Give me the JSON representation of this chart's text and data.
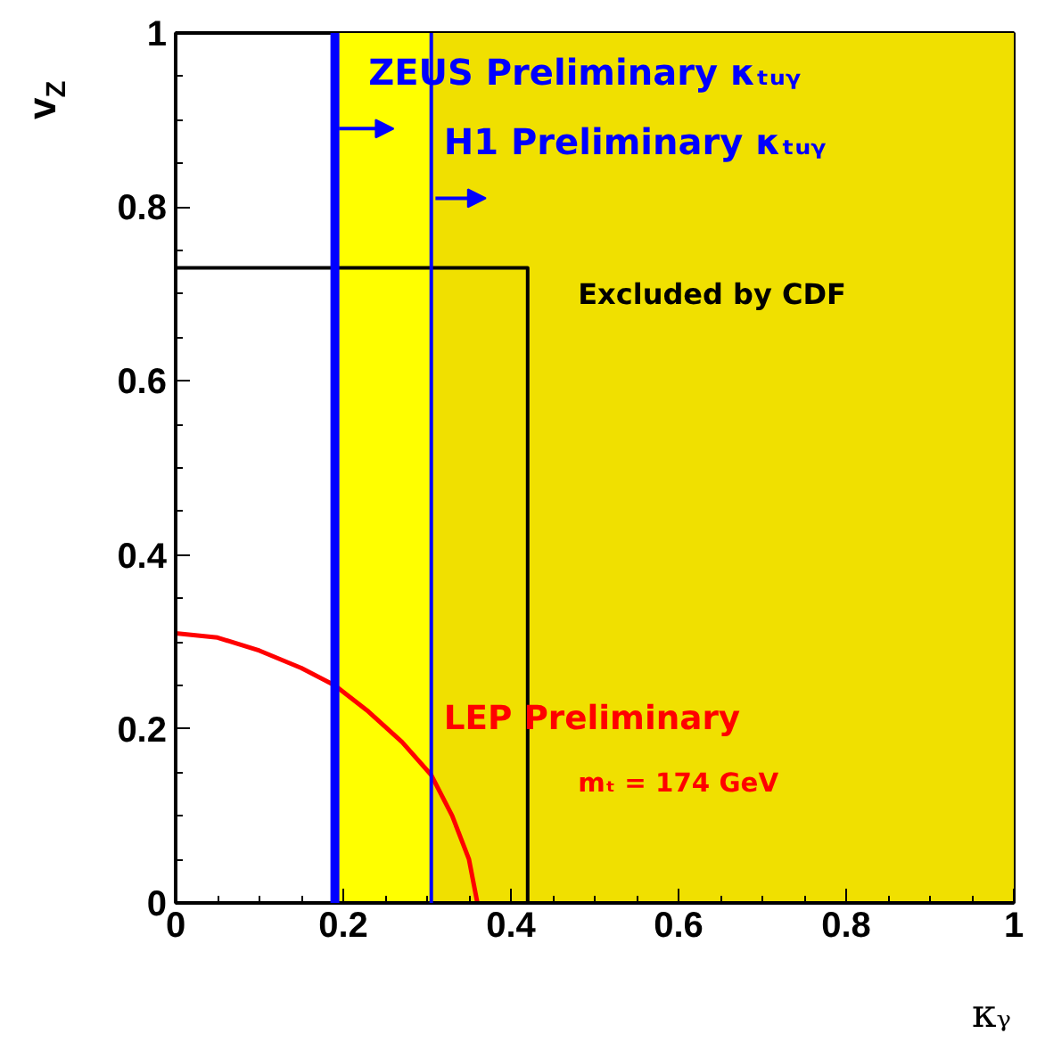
{
  "chart_data": {
    "type": "line",
    "xlabel": "κᵧ",
    "ylabel": "v$_{Z}$",
    "xlim": [
      0,
      1
    ],
    "ylim": [
      0,
      1
    ],
    "xticks": [
      0,
      0.2,
      0.4,
      0.6,
      0.8,
      1
    ],
    "yticks": [
      0,
      0.2,
      0.4,
      0.6,
      0.8,
      1
    ],
    "grid": false,
    "marker": "none",
    "line_style": "solid",
    "series": [
      {
        "name": "Excluded by CDF",
        "color": "#000000",
        "x": [
          0,
          0.42,
          0.42
        ],
        "values": [
          0.73,
          0.73,
          0
        ]
      },
      {
        "name": "LEP  Preliminary",
        "color": "#ff0000",
        "x": [
          0,
          0.05,
          0.1,
          0.15,
          0.19,
          0.23,
          0.27,
          0.305,
          0.33,
          0.35,
          0.36
        ],
        "values": [
          0.31,
          0.305,
          0.29,
          0.27,
          0.25,
          0.22,
          0.185,
          0.147,
          0.1,
          0.05,
          0
        ]
      }
    ],
    "bands": [
      {
        "axis": "x",
        "from": 0.19,
        "to": 0.305,
        "color": "#ffff00"
      },
      {
        "axis": "x",
        "from": 0.305,
        "to": 1,
        "color": "#f0e000"
      }
    ],
    "ref_lines": [
      {
        "axis": "x",
        "value": 0.19,
        "label": "ZEUS Preliminary κₜᵤᵧ",
        "color": "#0000ff",
        "line_style": "solid"
      },
      {
        "axis": "x",
        "value": 0.305,
        "label": "H1 Preliminary κₜᵤᵧ",
        "color": "#0000ff",
        "line_style": "solid"
      }
    ],
    "annotations": [
      "mₜ = 174 GeV"
    ]
  }
}
